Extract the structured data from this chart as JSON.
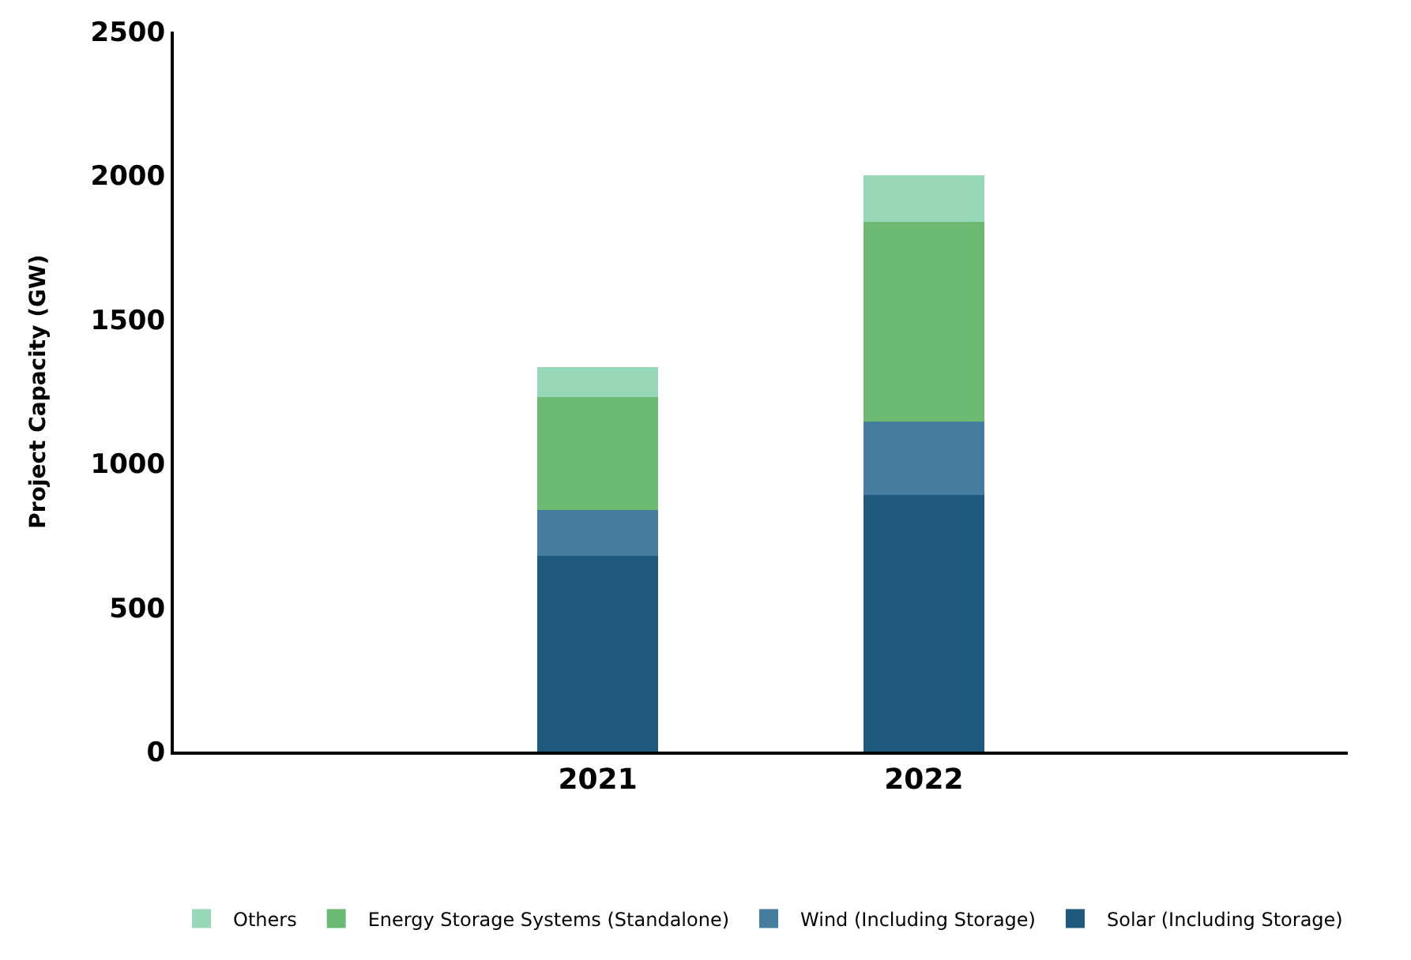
{
  "chart_data": {
    "type": "bar",
    "stacked": true,
    "ylabel": "Project Capacity (GW)",
    "categories": [
      "2021",
      "2022"
    ],
    "series": [
      {
        "name": "Solar (Including Storage)",
        "color": "#1f5a7e",
        "values": [
          680,
          890
        ]
      },
      {
        "name": "Wind (Including Storage)",
        "color": "#467d9f",
        "values": [
          160,
          255
        ]
      },
      {
        "name": "Energy Storage Systems (Standalone)",
        "color": "#6cba72",
        "values": [
          390,
          695
        ]
      },
      {
        "name": "Others",
        "color": "#98d8b8",
        "values": [
          105,
          160
        ]
      }
    ],
    "ylim": [
      0,
      2500
    ],
    "yticks": [
      0,
      500,
      1000,
      1500,
      2000,
      2500
    ],
    "legend": "bottom"
  }
}
